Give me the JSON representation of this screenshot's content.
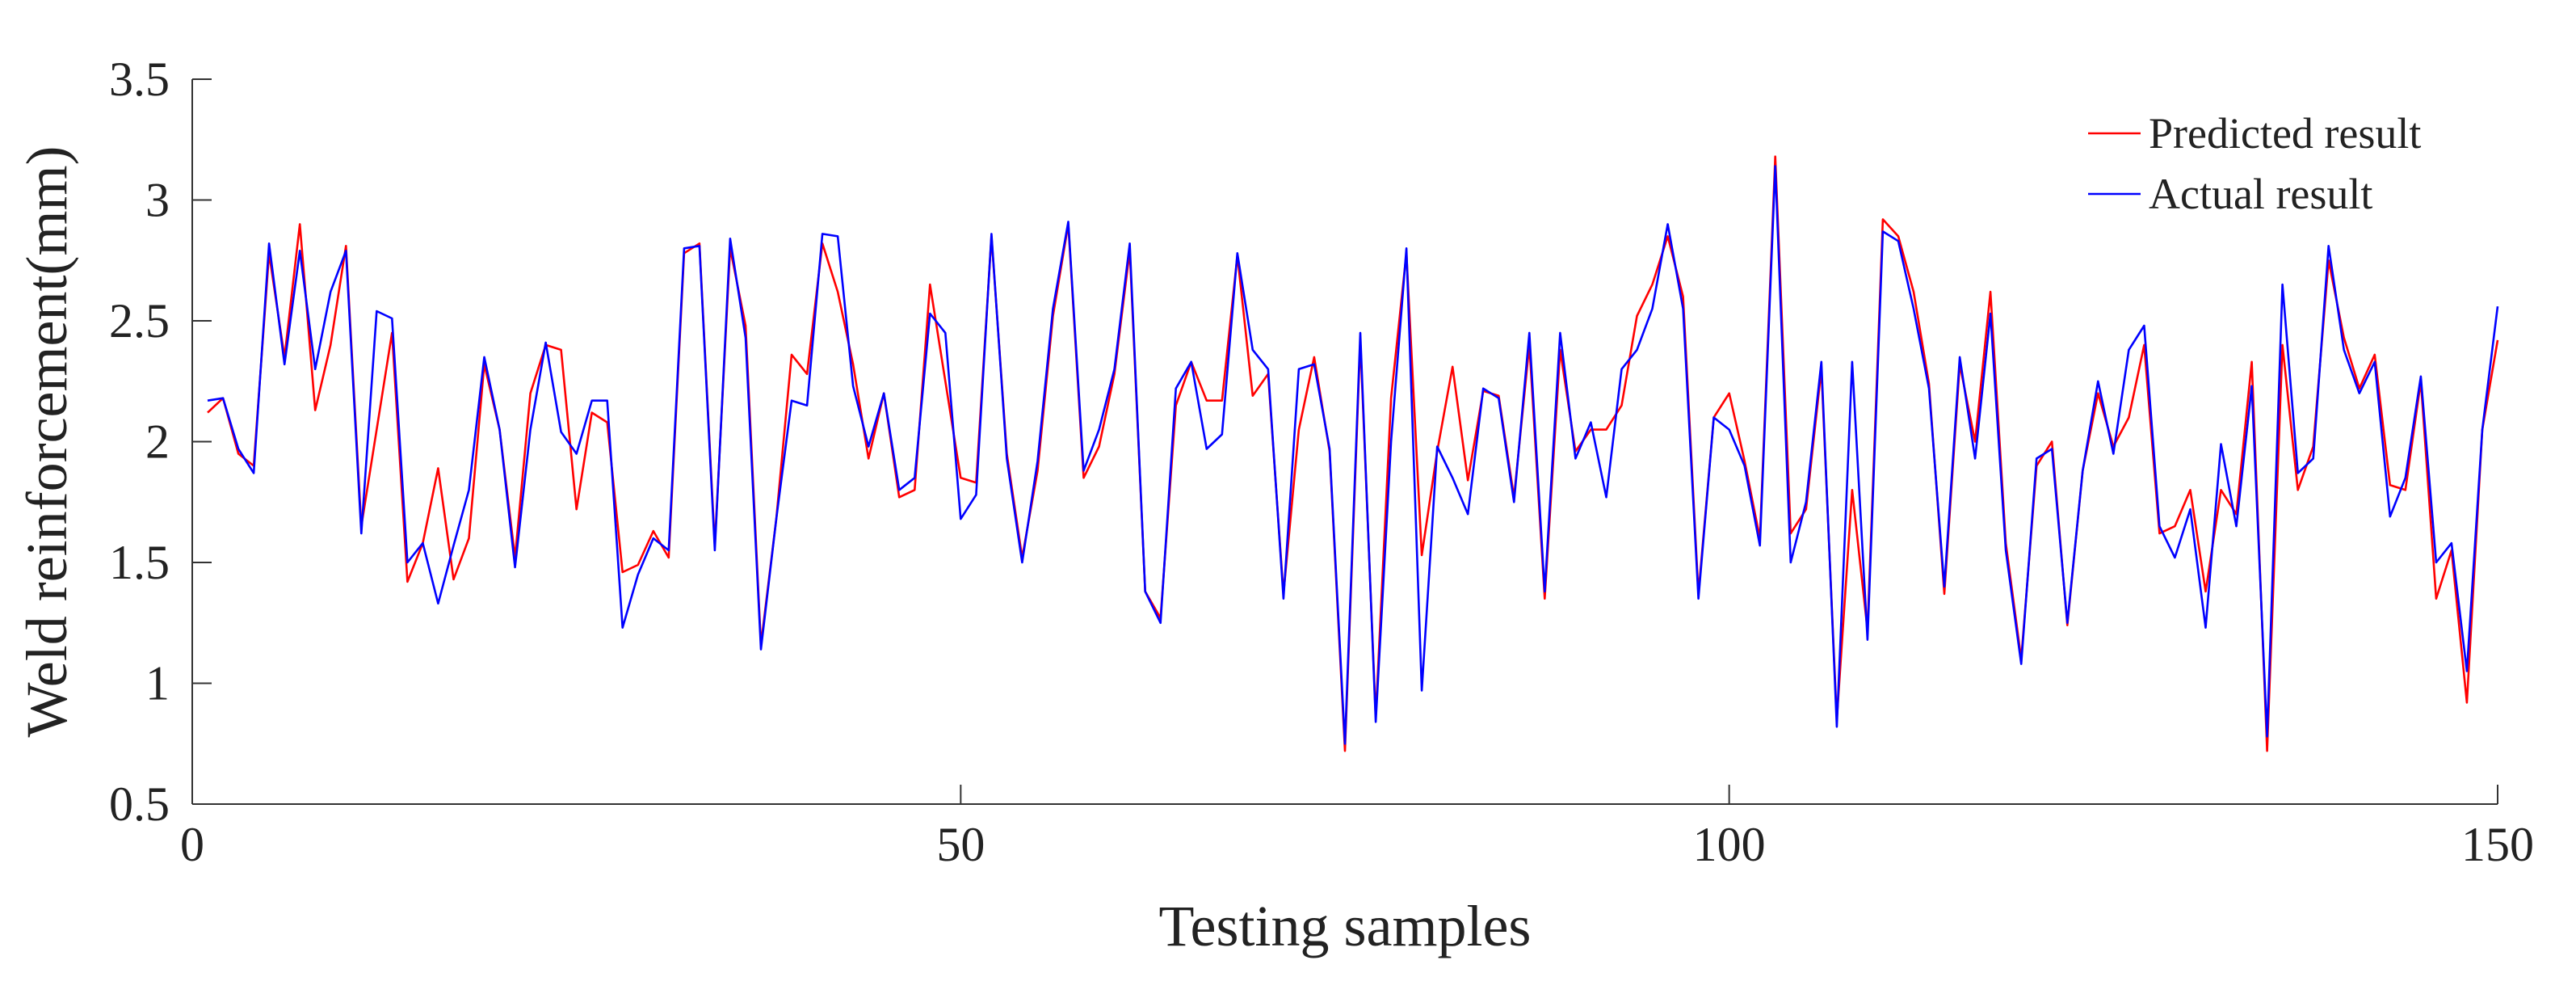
{
  "chart_data": {
    "type": "line",
    "xlabel": "Testing samples",
    "ylabel": "Weld reinforcement(mm)",
    "xlim": [
      0,
      150
    ],
    "ylim": [
      0.5,
      3.5
    ],
    "xticks": [
      0,
      50,
      100,
      150
    ],
    "xtick_labels": [
      "0",
      "50",
      "100",
      "150"
    ],
    "yticks": [
      0.5,
      1,
      1.5,
      2,
      2.5,
      3,
      3.5
    ],
    "ytick_labels": [
      "0.5",
      "1",
      "1.5",
      "2",
      "2.5",
      "3",
      "3.5"
    ],
    "grid": false,
    "legend_position": "top-right",
    "series": [
      {
        "name": "Predicted result",
        "color": "#ff0000",
        "values": [
          2.12,
          2.18,
          1.95,
          1.9,
          2.78,
          2.35,
          2.9,
          2.13,
          2.4,
          2.81,
          1.65,
          2.05,
          2.45,
          1.42,
          1.58,
          1.89,
          1.43,
          1.6,
          2.32,
          2.05,
          1.52,
          2.2,
          2.4,
          2.38,
          1.72,
          2.12,
          2.08,
          1.46,
          1.49,
          1.63,
          1.52,
          2.78,
          2.82,
          1.57,
          2.8,
          2.48,
          1.16,
          1.68,
          2.36,
          2.28,
          2.82,
          2.62,
          2.32,
          1.93,
          2.2,
          1.77,
          1.8,
          2.65,
          2.25,
          1.85,
          1.83,
          2.85,
          1.95,
          1.52,
          1.88,
          2.52,
          2.9,
          1.85,
          1.98,
          2.28,
          2.79,
          1.38,
          1.27,
          2.15,
          2.33,
          2.17,
          2.17,
          2.77,
          2.19,
          2.28,
          1.37,
          2.05,
          2.35,
          1.96,
          0.72,
          2.42,
          0.86,
          2.18,
          2.78,
          1.53,
          1.96,
          2.31,
          1.84,
          2.21,
          2.19,
          1.77,
          2.4,
          1.35,
          2.38,
          1.96,
          2.05,
          2.05,
          2.15,
          2.52,
          2.65,
          2.85,
          2.6,
          1.37,
          2.1,
          2.2,
          1.92,
          1.6,
          3.18,
          1.62,
          1.72,
          2.3,
          0.85,
          1.8,
          1.22,
          2.92,
          2.85,
          2.62,
          2.24,
          1.37,
          2.32,
          2.0,
          2.62,
          1.58,
          1.1,
          1.9,
          2.0,
          1.24,
          1.88,
          2.2,
          1.98,
          2.1,
          2.4,
          1.62,
          1.65,
          1.8,
          1.38,
          1.8,
          1.7,
          2.33,
          0.72,
          2.4,
          1.8,
          1.98,
          2.75,
          2.43,
          2.22,
          2.36,
          1.82,
          1.8,
          2.25,
          1.35,
          1.55,
          0.92,
          2.05,
          2.42
        ]
      },
      {
        "name": "Actual result",
        "color": "#0000ff",
        "values": [
          2.17,
          2.18,
          1.97,
          1.87,
          2.82,
          2.32,
          2.79,
          2.3,
          2.62,
          2.79,
          1.62,
          2.54,
          2.51,
          1.5,
          1.58,
          1.33,
          1.57,
          1.8,
          2.35,
          2.05,
          1.48,
          2.05,
          2.41,
          2.04,
          1.95,
          2.17,
          2.17,
          1.23,
          1.45,
          1.6,
          1.55,
          2.8,
          2.81,
          1.55,
          2.84,
          2.43,
          1.14,
          1.68,
          2.17,
          2.15,
          2.86,
          2.85,
          2.23,
          1.98,
          2.2,
          1.8,
          1.85,
          2.53,
          2.45,
          1.68,
          1.78,
          2.86,
          1.93,
          1.5,
          1.92,
          2.55,
          2.91,
          1.88,
          2.05,
          2.3,
          2.82,
          1.38,
          1.25,
          2.22,
          2.33,
          1.97,
          2.03,
          2.78,
          2.38,
          2.3,
          1.35,
          2.3,
          2.32,
          1.97,
          0.75,
          2.45,
          0.84,
          2.0,
          2.8,
          0.97,
          1.98,
          1.85,
          1.7,
          2.22,
          2.18,
          1.75,
          2.45,
          1.38,
          2.45,
          1.93,
          2.08,
          1.77,
          2.3,
          2.38,
          2.55,
          2.9,
          2.55,
          1.35,
          2.1,
          2.05,
          1.9,
          1.57,
          3.14,
          1.5,
          1.75,
          2.33,
          0.82,
          2.33,
          1.18,
          2.87,
          2.83,
          2.55,
          2.22,
          1.4,
          2.35,
          1.93,
          2.53,
          1.55,
          1.08,
          1.93,
          1.97,
          1.25,
          1.88,
          2.25,
          1.95,
          2.38,
          2.48,
          1.65,
          1.52,
          1.72,
          1.23,
          1.99,
          1.65,
          2.23,
          0.78,
          2.65,
          1.87,
          1.93,
          2.81,
          2.38,
          2.2,
          2.33,
          1.69,
          1.85,
          2.27,
          1.5,
          1.58,
          1.05,
          2.05,
          2.56
        ]
      }
    ]
  }
}
